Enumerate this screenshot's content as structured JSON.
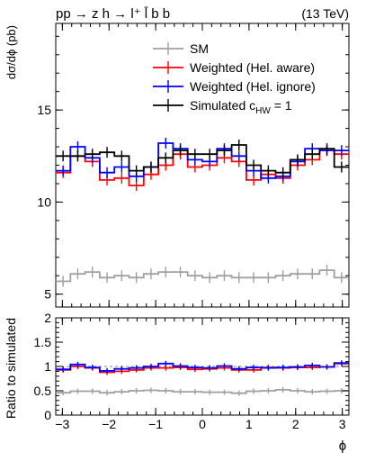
{
  "chart_data": [
    {
      "type": "line",
      "title": "pp → z h → l⁺ l̄ b b",
      "annotation": "(13 TeV)",
      "xlabel": "",
      "ylabel": "dσ/dϕ (pb)",
      "xlim": [
        -3.1416,
        3.1416
      ],
      "ylim": [
        4.3,
        19.7
      ],
      "yticks": [
        5,
        10,
        15
      ],
      "legend_position": "top-right",
      "bin_edges": [
        -3.1416,
        -2.8274,
        -2.5133,
        -2.1991,
        -1.885,
        -1.5708,
        -1.2566,
        -0.9425,
        -0.6283,
        -0.3142,
        0.0,
        0.3142,
        0.6283,
        0.9425,
        1.2566,
        1.5708,
        1.885,
        2.1991,
        2.5133,
        2.8274,
        3.1416
      ],
      "series": [
        {
          "name": "SM",
          "color": "#a0a0a0",
          "values": [
            5.7,
            6.1,
            6.2,
            5.9,
            6.0,
            5.9,
            6.1,
            6.2,
            6.2,
            6.0,
            5.9,
            6.0,
            5.9,
            5.9,
            5.9,
            6.0,
            6.1,
            6.1,
            6.3,
            5.9
          ]
        },
        {
          "name": "Weighted (Hel. aware)",
          "color": "#ff0000",
          "values": [
            11.6,
            12.5,
            12.2,
            11.2,
            11.3,
            10.9,
            11.5,
            12.0,
            12.6,
            11.9,
            12.0,
            12.4,
            12.2,
            11.2,
            11.5,
            11.3,
            12.0,
            12.3,
            12.8,
            12.6
          ]
        },
        {
          "name": "Weighted (Hel. ignore)",
          "color": "#0000ff",
          "values": [
            11.7,
            13.0,
            12.4,
            11.6,
            11.9,
            11.4,
            11.9,
            13.2,
            12.9,
            12.3,
            12.2,
            12.9,
            12.5,
            11.7,
            11.3,
            11.4,
            12.2,
            12.9,
            12.8,
            12.8
          ]
        },
        {
          "name": "Simulated  c_HW = 1",
          "color": "#000000",
          "values": [
            12.5,
            12.5,
            12.6,
            12.7,
            12.5,
            11.7,
            11.9,
            12.4,
            12.8,
            12.6,
            12.6,
            12.8,
            13.1,
            12.0,
            11.7,
            11.6,
            12.3,
            12.6,
            12.9,
            11.9
          ]
        }
      ]
    },
    {
      "type": "line",
      "xlabel": "ϕ",
      "ylabel": "Ratio to simulated",
      "xlim": [
        -3.1416,
        3.1416
      ],
      "ylim": [
        0,
        2
      ],
      "yticks": [
        0,
        0.5,
        1,
        1.5,
        2
      ],
      "xticks": [
        -3,
        -2,
        -1,
        0,
        1,
        2,
        3
      ],
      "reference_line": 1,
      "bin_edges": [
        -3.1416,
        -2.8274,
        -2.5133,
        -2.1991,
        -1.885,
        -1.5708,
        -1.2566,
        -0.9425,
        -0.6283,
        -0.3142,
        0.0,
        0.3142,
        0.6283,
        0.9425,
        1.2566,
        1.5708,
        1.885,
        2.1991,
        2.5133,
        2.8274,
        3.1416
      ],
      "series": [
        {
          "name": "SM",
          "color": "#a0a0a0",
          "values": [
            0.46,
            0.49,
            0.49,
            0.46,
            0.48,
            0.5,
            0.51,
            0.5,
            0.48,
            0.48,
            0.47,
            0.47,
            0.45,
            0.49,
            0.5,
            0.52,
            0.5,
            0.48,
            0.49,
            0.5
          ]
        },
        {
          "name": "Weighted (Hel. aware)",
          "color": "#ff0000",
          "values": [
            0.93,
            1.0,
            0.97,
            0.88,
            0.9,
            0.93,
            0.97,
            0.97,
            0.98,
            0.94,
            0.95,
            0.97,
            0.93,
            0.93,
            0.98,
            0.97,
            0.98,
            0.98,
            0.99,
            1.06
          ]
        },
        {
          "name": "Weighted (Hel. ignore)",
          "color": "#0000ff",
          "values": [
            0.94,
            1.04,
            0.98,
            0.91,
            0.95,
            0.97,
            1.0,
            1.06,
            1.01,
            0.98,
            0.97,
            1.01,
            0.95,
            0.98,
            0.97,
            0.98,
            0.99,
            1.02,
            0.99,
            1.07
          ]
        }
      ]
    }
  ]
}
